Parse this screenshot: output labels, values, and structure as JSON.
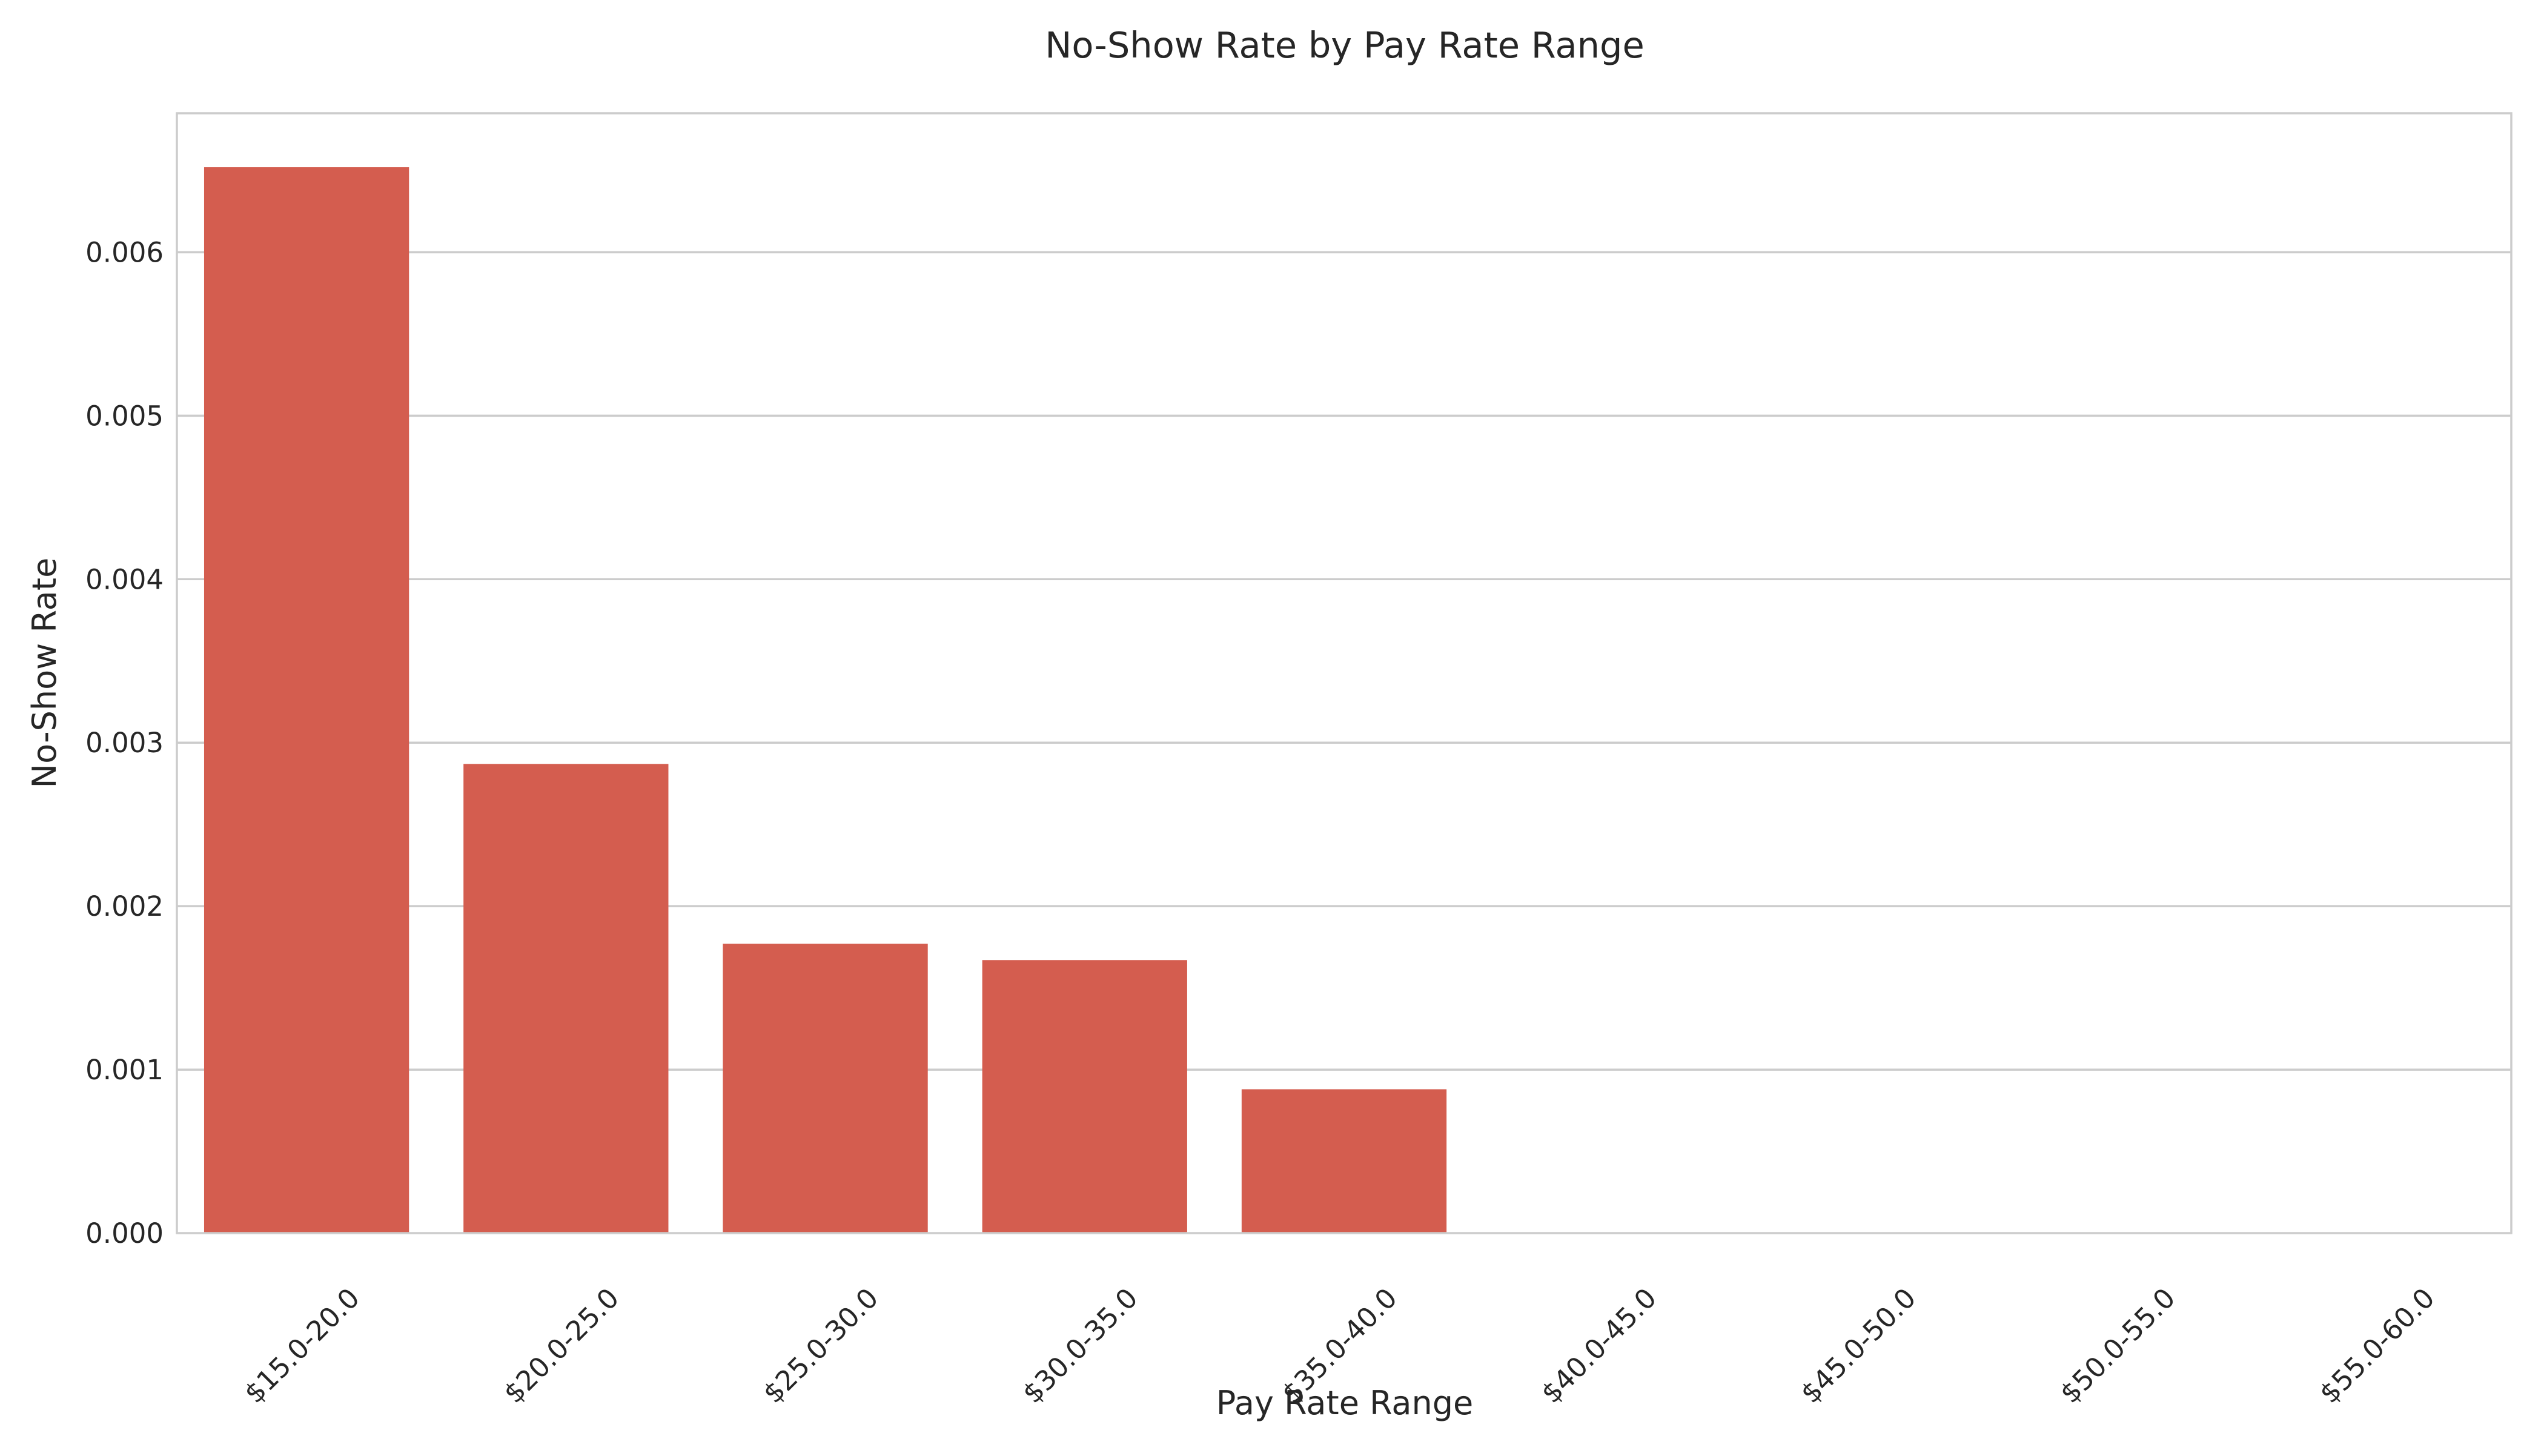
{
  "chart_data": {
    "type": "bar",
    "title": "No-Show Rate by Pay Rate Range",
    "xlabel": "Pay Rate Range",
    "ylabel": "No-Show Rate",
    "categories": [
      "$15.0-20.0",
      "$20.0-25.0",
      "$25.0-30.0",
      "$30.0-35.0",
      "$35.0-40.0",
      "$40.0-45.0",
      "$45.0-50.0",
      "$50.0-55.0",
      "$55.0-60.0"
    ],
    "values": [
      0.00652,
      0.00287,
      0.00177,
      0.00167,
      0.00088,
      0,
      0,
      0,
      0
    ],
    "ylim": [
      0,
      0.00685
    ],
    "yticks": [
      0.0,
      0.001,
      0.002,
      0.003,
      0.004,
      0.005,
      0.006
    ],
    "ytick_labels": [
      "0.000",
      "0.001",
      "0.002",
      "0.003",
      "0.004",
      "0.005",
      "0.006"
    ],
    "grid": "horizontal",
    "bar_color": "#d45d4f",
    "grid_color": "#cccccc"
  }
}
